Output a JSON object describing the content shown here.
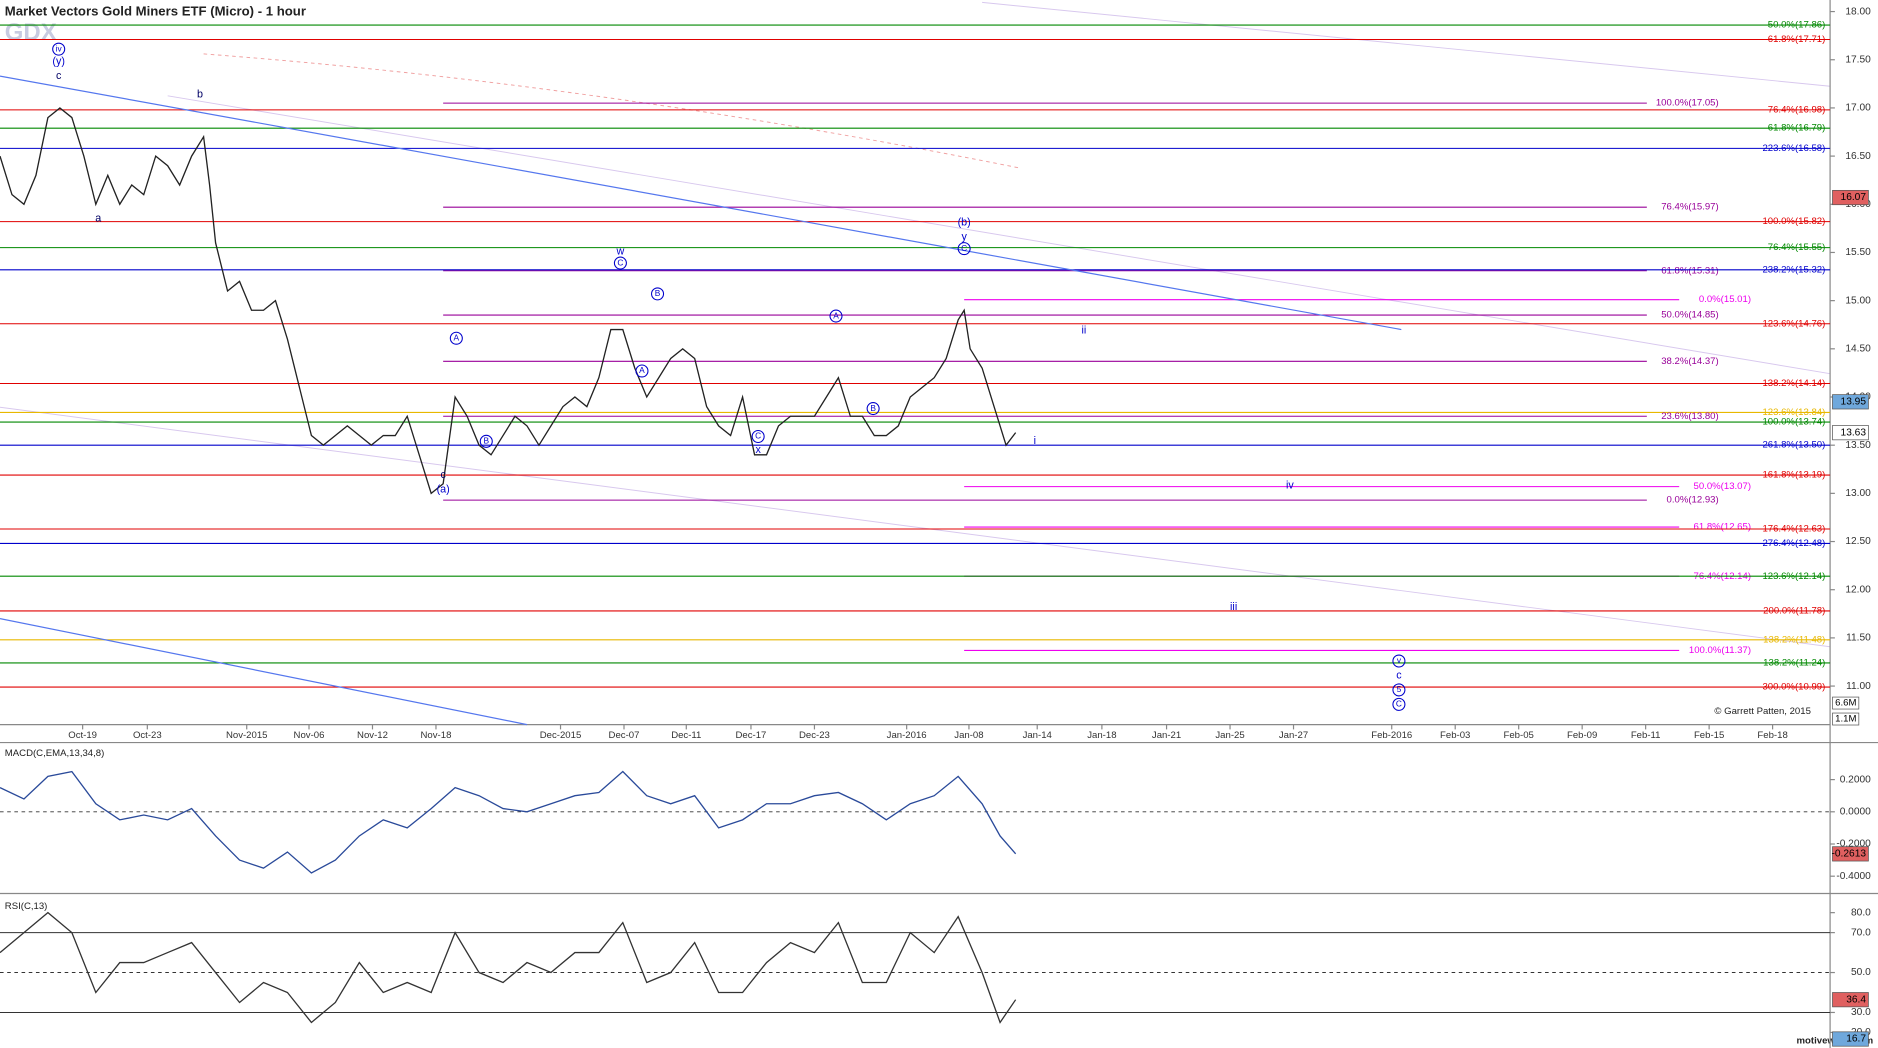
{
  "header": {
    "title": "Market Vectors Gold Miners ETF (Micro) - 1 hour",
    "symbol": "GDX",
    "copyright": "© Garrett Patten, 2015",
    "site": "motivewave.com"
  },
  "chart_data": [
    {
      "type": "line",
      "color": "#222222",
      "xlim": [
        0,
        382
      ],
      "ylim": [
        10.6,
        18.12
      ],
      "xticks": [
        {
          "value": 17.25,
          "label": "Oct-19"
        },
        {
          "value": 30.75,
          "label": "Oct-23"
        },
        {
          "value": 51.5,
          "label": "Nov-2015"
        },
        {
          "value": 64.5,
          "label": "Nov-06"
        },
        {
          "value": 77.75,
          "label": "Nov-12"
        },
        {
          "value": 91,
          "label": "Nov-18"
        },
        {
          "value": 117,
          "label": "Dec-2015"
        },
        {
          "value": 130.25,
          "label": "Dec-07"
        },
        {
          "value": 143.25,
          "label": "Dec-11"
        },
        {
          "value": 156.75,
          "label": "Dec-17"
        },
        {
          "value": 170,
          "label": "Dec-23"
        },
        {
          "value": 189.25,
          "label": "Jan-2016"
        },
        {
          "value": 202.25,
          "label": "Jan-08"
        },
        {
          "value": 216.5,
          "label": "Jan-14"
        },
        {
          "value": 230,
          "label": "Jan-18"
        },
        {
          "value": 243.5,
          "label": "Jan-21"
        },
        {
          "value": 256.75,
          "label": "Jan-25"
        },
        {
          "value": 270,
          "label": "Jan-27"
        },
        {
          "value": 290.5,
          "label": "Feb-2016"
        },
        {
          "value": 303.75,
          "label": "Feb-03"
        },
        {
          "value": 317,
          "label": "Feb-05"
        },
        {
          "value": 330.25,
          "label": "Feb-09"
        },
        {
          "value": 343.5,
          "label": "Feb-11"
        },
        {
          "value": 356.75,
          "label": "Feb-15"
        },
        {
          "value": 370,
          "label": "Feb-18"
        }
      ],
      "yticks": [
        {
          "value": 18,
          "label": "18.00"
        },
        {
          "value": 17.5,
          "label": "17.50"
        },
        {
          "value": 17,
          "label": "17.00"
        },
        {
          "value": 16.5,
          "label": "16.50"
        },
        {
          "value": 16,
          "label": "16.00"
        },
        {
          "value": 15.5,
          "label": "15.50"
        },
        {
          "value": 15,
          "label": "15.00"
        },
        {
          "value": 14.5,
          "label": "14.50"
        },
        {
          "value": 14,
          "label": "14.00"
        },
        {
          "value": 13.5,
          "label": "13.50"
        },
        {
          "value": 13,
          "label": "13.00"
        },
        {
          "value": 12.5,
          "label": "12.50"
        },
        {
          "value": 12,
          "label": "12.00"
        },
        {
          "value": 11.5,
          "label": "11.50"
        },
        {
          "value": 11,
          "label": "11.00"
        }
      ],
      "x": [
        0,
        2.5,
        5,
        7.5,
        10,
        12.5,
        15,
        17.5,
        20,
        22.5,
        25,
        27.5,
        30,
        32.5,
        35,
        37.5,
        40,
        42.5,
        43.75,
        45,
        47.5,
        50,
        52.5,
        55,
        57.5,
        60,
        62.5,
        65,
        67.5,
        70,
        72.5,
        75,
        77.5,
        80,
        82.5,
        85,
        87.5,
        90,
        92.5,
        95,
        97.5,
        100,
        102.5,
        105,
        107.5,
        110,
        112.5,
        115,
        117.5,
        120,
        122.5,
        125,
        127.5,
        130,
        132.5,
        135,
        137.5,
        140,
        142.5,
        145,
        147.5,
        150,
        152.5,
        155,
        157.5,
        160,
        162.5,
        165,
        167.5,
        170,
        172.5,
        175,
        177.5,
        180,
        182.5,
        185,
        187.5,
        190,
        192.5,
        195,
        197.5,
        200,
        201.25,
        202.5,
        205,
        207.5,
        210,
        212
      ],
      "values": [
        16.5,
        16.1,
        16.0,
        16.3,
        16.9,
        17.0,
        16.9,
        16.5,
        16.0,
        16.3,
        16.0,
        16.2,
        16.1,
        16.5,
        16.4,
        16.2,
        16.5,
        16.7,
        16.2,
        15.6,
        15.1,
        15.2,
        14.9,
        14.9,
        15.0,
        14.6,
        14.1,
        13.6,
        13.5,
        13.6,
        13.7,
        13.6,
        13.5,
        13.6,
        13.6,
        13.8,
        13.4,
        13.0,
        13.1,
        14.0,
        13.8,
        13.5,
        13.4,
        13.6,
        13.8,
        13.7,
        13.5,
        13.7,
        13.9,
        14.0,
        13.9,
        14.2,
        14.7,
        14.7,
        14.3,
        14.0,
        14.2,
        14.4,
        14.5,
        14.4,
        13.9,
        13.7,
        13.6,
        14.0,
        13.4,
        13.4,
        13.7,
        13.8,
        13.8,
        13.8,
        14.0,
        14.2,
        13.8,
        13.8,
        13.6,
        13.6,
        13.7,
        14.0,
        14.1,
        14.2,
        14.4,
        14.8,
        14.9,
        14.5,
        14.3,
        13.9,
        13.5,
        13.63
      ],
      "levels": [
        {
          "value": 17.86,
          "label": "50.0%(17.86)",
          "color": "#008800"
        },
        {
          "value": 17.71,
          "label": "61.8%(17.71)",
          "color": "#e00000"
        },
        {
          "value": 17.05,
          "label": "100.0%(17.05)",
          "color": "#990099",
          "from": 92.5
        },
        {
          "value": 16.98,
          "label": "76.4%(16.98)",
          "color": "#e00000"
        },
        {
          "value": 16.79,
          "label": "61.8%(16.79)",
          "color": "#008800"
        },
        {
          "value": 16.58,
          "label": "223.6%(16.58)",
          "color": "#0000cc"
        },
        {
          "value": 15.97,
          "label": "76.4%(15.97)",
          "color": "#990099",
          "from": 92.5
        },
        {
          "value": 15.82,
          "label": "100.0%(15.82)",
          "color": "#e00000"
        },
        {
          "value": 15.55,
          "label": "76.4%(15.55)",
          "color": "#008800"
        },
        {
          "value": 15.31,
          "label": "61.8%(15.31)",
          "color": "#990099",
          "from": 92.5
        },
        {
          "value": 15.32,
          "label": "238.2%(15.32)",
          "color": "#0000cc"
        },
        {
          "value": 15.01,
          "label": "0.0%(15.01)",
          "color": "#ee00ee",
          "from": 201.25
        },
        {
          "value": 14.85,
          "label": "50.0%(14.85)",
          "color": "#990099",
          "from": 92.5
        },
        {
          "value": 14.76,
          "label": "123.6%(14.76)",
          "color": "#e00000"
        },
        {
          "value": 14.37,
          "label": "38.2%(14.37)",
          "color": "#990099",
          "from": 92.5
        },
        {
          "value": 14.14,
          "label": "138.2%(14.14)",
          "color": "#e00000"
        },
        {
          "value": 13.84,
          "label": "123.6%(13.84)",
          "color": "#e8b800"
        },
        {
          "value": 13.8,
          "label": "23.6%(13.80)",
          "color": "#990099",
          "from": 92.5
        },
        {
          "value": 13.74,
          "label": "100.0%(13.74)",
          "color": "#008800"
        },
        {
          "value": 13.5,
          "label": "261.8%(13.50)",
          "color": "#0000cc"
        },
        {
          "value": 13.19,
          "label": "161.8%(13.19)",
          "color": "#e00000"
        },
        {
          "value": 13.07,
          "label": "50.0%(13.07)",
          "color": "#ee00ee",
          "from": 201.25
        },
        {
          "value": 12.93,
          "label": "0.0%(12.93)",
          "color": "#990099",
          "from": 92.5
        },
        {
          "value": 12.65,
          "label": "61.8%(12.65)",
          "color": "#ee00ee",
          "from": 201.25
        },
        {
          "value": 12.63,
          "label": "176.4%(12.63)",
          "color": "#e00000"
        },
        {
          "value": 12.48,
          "label": "276.4%(12.48)",
          "color": "#0000cc"
        },
        {
          "value": 12.14,
          "label": "76.4%(12.14)",
          "color": "#ee00ee",
          "from": 201.25
        },
        {
          "value": 12.14,
          "label": "123.6%(12.14)",
          "color": "#008800"
        },
        {
          "value": 11.78,
          "label": "200.0%(11.78)",
          "color": "#e00000"
        },
        {
          "value": 11.48,
          "label": "138.2%(11.48)",
          "color": "#e8b800"
        },
        {
          "value": 11.37,
          "label": "100.0%(11.37)",
          "color": "#ee00ee",
          "from": 201.25
        },
        {
          "value": 11.24,
          "label": "138.2%(11.24)",
          "color": "#008800"
        },
        {
          "value": 10.99,
          "label": "300.0%(10.99)",
          "color": "#e00000"
        }
      ],
      "trendlines": [
        {
          "x": [
            0,
            292.5
          ],
          "values": [
            17.33,
            14.7
          ],
          "color": "#5577ee"
        },
        {
          "x": [
            0,
            110
          ],
          "values": [
            11.7,
            10.6
          ],
          "color": "#5577ee"
        }
      ],
      "annotations": [
        {
          "text": "iv",
          "x": 12.25,
          "y": 17.61,
          "circled": true,
          "color": "#0000cc"
        },
        {
          "text": "(y)",
          "x": 12.25,
          "y": 17.48,
          "color": "#0000cc"
        },
        {
          "text": "c",
          "x": 12.25,
          "y": 17.33,
          "color": "#000066"
        },
        {
          "text": "b",
          "x": 41.75,
          "y": 17.14,
          "color": "#000066"
        },
        {
          "text": "a",
          "x": 20.5,
          "y": 15.85,
          "color": "#000066"
        },
        {
          "text": "c",
          "x": 92.5,
          "y": 13.19,
          "color": "#000066"
        },
        {
          "text": "(a)",
          "x": 92.5,
          "y": 13.04,
          "color": "#0000cc"
        },
        {
          "text": "A",
          "x": 95.25,
          "y": 14.61,
          "circled": true,
          "color": "#0000cc"
        },
        {
          "text": "B",
          "x": 101.5,
          "y": 13.54,
          "circled": true,
          "color": "#0000cc"
        },
        {
          "text": "w",
          "x": 129.5,
          "y": 15.51,
          "color": "#0000cc"
        },
        {
          "text": "C",
          "x": 129.5,
          "y": 15.39,
          "circled": true,
          "color": "#0000cc"
        },
        {
          "text": "B",
          "x": 137.25,
          "y": 15.07,
          "circled": true,
          "color": "#0000cc"
        },
        {
          "text": "A",
          "x": 134,
          "y": 14.27,
          "circled": true,
          "color": "#0000cc"
        },
        {
          "text": "C",
          "x": 158.25,
          "y": 13.59,
          "circled": true,
          "color": "#0000cc"
        },
        {
          "text": "x",
          "x": 158.25,
          "y": 13.45,
          "color": "#0000cc"
        },
        {
          "text": "A",
          "x": 174.5,
          "y": 14.84,
          "circled": true,
          "color": "#0000cc"
        },
        {
          "text": "B",
          "x": 182.25,
          "y": 13.88,
          "circled": true,
          "color": "#0000cc"
        },
        {
          "text": "(b)",
          "x": 201.25,
          "y": 15.81,
          "color": "#0000cc"
        },
        {
          "text": "y",
          "x": 201.25,
          "y": 15.66,
          "color": "#0000cc"
        },
        {
          "text": "C",
          "x": 201.25,
          "y": 15.54,
          "circled": true,
          "color": "#0000cc"
        },
        {
          "text": "ii",
          "x": 226.25,
          "y": 14.69,
          "color": "#0000cc"
        },
        {
          "text": "i",
          "x": 216,
          "y": 13.54,
          "color": "#0000cc"
        },
        {
          "text": "iv",
          "x": 269.25,
          "y": 13.08,
          "color": "#0000cc"
        },
        {
          "text": "iii",
          "x": 257.5,
          "y": 11.82,
          "color": "#0000cc"
        },
        {
          "text": "v",
          "x": 292,
          "y": 11.26,
          "circled": true,
          "color": "#0000cc"
        },
        {
          "text": "c",
          "x": 292,
          "y": 11.11,
          "color": "#0000cc"
        },
        {
          "text": "5",
          "x": 292,
          "y": 10.96,
          "circled": true,
          "color": "#0000cc"
        },
        {
          "text": "C",
          "x": 292,
          "y": 10.81,
          "circled": true,
          "color": "#0000cc"
        }
      ],
      "markers": [
        {
          "value": 16.07,
          "color": "#e06060"
        },
        {
          "value": 13.95,
          "color": "#6fa8dc"
        },
        {
          "value": 13.63,
          "color": "#ffffff"
        }
      ],
      "volume_ticks": [
        {
          "value": 6600000,
          "label": "6.6M"
        },
        {
          "value": 1100000,
          "label": "1.1M"
        }
      ]
    },
    {
      "type": "line",
      "title": "MACD(C,EMA,13,34,8)",
      "color": "#2a4a9a",
      "xlim": [
        0,
        382
      ],
      "ylim": [
        -0.5,
        0.43
      ],
      "yticks": [
        {
          "value": 0.2,
          "label": "0.2000"
        },
        {
          "value": 0,
          "label": "0.0000"
        },
        {
          "value": -0.2,
          "label": "-0.2000"
        },
        {
          "value": -0.4,
          "label": "-0.4000"
        }
      ],
      "hlines": [
        0
      ],
      "hline_styles": [
        "dashed"
      ],
      "x": [
        0,
        5,
        10,
        15,
        20,
        25,
        30,
        35,
        40,
        45,
        50,
        55,
        60,
        65,
        70,
        75,
        80,
        85,
        90,
        95,
        100,
        105,
        110,
        115,
        120,
        125,
        130,
        135,
        140,
        145,
        150,
        155,
        160,
        165,
        170,
        175,
        180,
        185,
        190,
        195,
        200,
        205,
        208.75,
        212
      ],
      "values": [
        0.15,
        0.08,
        0.22,
        0.25,
        0.05,
        -0.05,
        -0.02,
        -0.05,
        0.02,
        -0.15,
        -0.3,
        -0.35,
        -0.25,
        -0.38,
        -0.3,
        -0.15,
        -0.05,
        -0.1,
        0.02,
        0.15,
        0.1,
        0.02,
        0.0,
        0.05,
        0.1,
        0.12,
        0.25,
        0.1,
        0.05,
        0.1,
        -0.1,
        -0.05,
        0.05,
        0.05,
        0.1,
        0.12,
        0.05,
        -0.05,
        0.05,
        0.1,
        0.22,
        0.05,
        -0.15,
        -0.2613
      ],
      "markers": [
        {
          "value": -0.2613,
          "color": "#e06060"
        }
      ]
    },
    {
      "type": "line",
      "title": "RSI(C,13)",
      "color": "#333333",
      "xlim": [
        0,
        382
      ],
      "ylim": [
        14,
        88.4
      ],
      "yticks": [
        {
          "value": 80,
          "label": "80.0"
        },
        {
          "value": 70,
          "label": "70.0"
        },
        {
          "value": 50,
          "label": "50.0"
        },
        {
          "value": 30,
          "label": "30.0"
        },
        {
          "value": 20,
          "label": "20.0"
        }
      ],
      "hlines": [
        70,
        50,
        30
      ],
      "hline_styles": [
        "solid",
        "dashed",
        "solid"
      ],
      "x": [
        0,
        5,
        10,
        15,
        20,
        25,
        30,
        35,
        40,
        45,
        50,
        55,
        60,
        65,
        70,
        75,
        80,
        85,
        90,
        95,
        100,
        105,
        110,
        115,
        120,
        125,
        130,
        135,
        140,
        145,
        150,
        155,
        160,
        165,
        170,
        175,
        180,
        185,
        190,
        195,
        200,
        205,
        208.75,
        212
      ],
      "values": [
        60,
        70,
        80,
        70,
        40,
        55,
        55,
        60,
        65,
        50,
        35,
        45,
        40,
        25,
        35,
        55,
        40,
        45,
        40,
        70,
        50,
        45,
        55,
        50,
        60,
        60,
        75,
        45,
        50,
        65,
        40,
        40,
        55,
        65,
        60,
        75,
        45,
        45,
        70,
        60,
        78,
        50,
        25,
        36.4
      ],
      "markers": [
        {
          "value": 36.4,
          "color": "#e06060"
        },
        {
          "value": 16.7,
          "color": "#6fa8dc"
        }
      ]
    }
  ]
}
